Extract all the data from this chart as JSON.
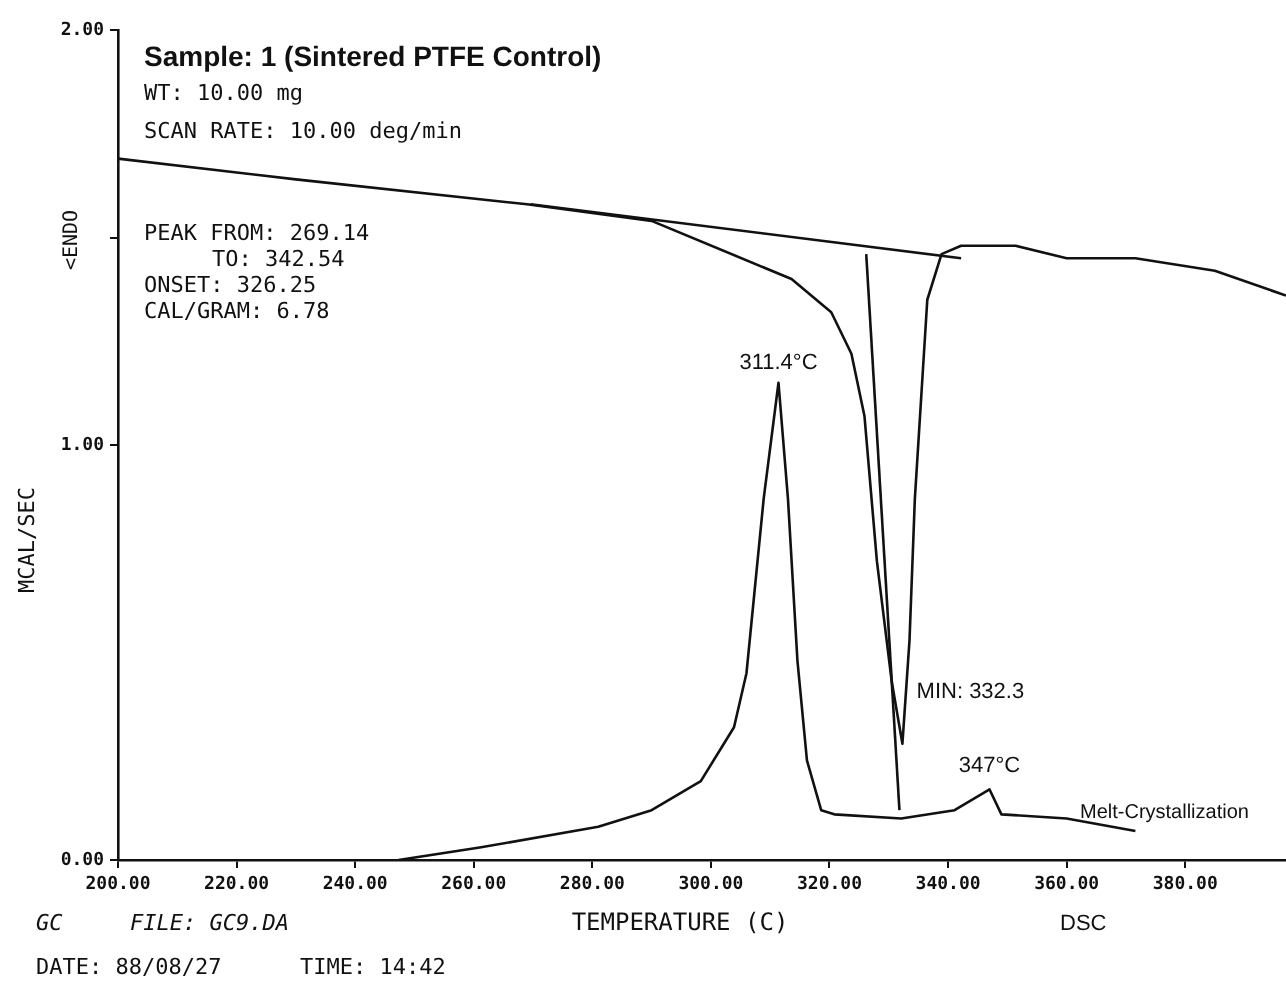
{
  "chart_data": {
    "type": "line",
    "title": "Sample: 1 (Sintered PTFE Control)",
    "xlabel": "TEMPERATURE (C)",
    "ylabel": "MCAL/SEC",
    "xlim": [
      200,
      397
    ],
    "ylim": [
      0,
      2
    ],
    "xticks": [
      {
        "value": 200,
        "label": "200.00"
      },
      {
        "value": 220,
        "label": "220.00"
      },
      {
        "value": 240,
        "label": "240.00"
      },
      {
        "value": 260,
        "label": "260.00"
      },
      {
        "value": 280,
        "label": "280.00"
      },
      {
        "value": 300,
        "label": "300.00"
      },
      {
        "value": 320,
        "label": "320.00"
      },
      {
        "value": 340,
        "label": "340.00"
      },
      {
        "value": 360,
        "label": "360.00"
      },
      {
        "value": 380,
        "label": "380.00"
      }
    ],
    "yticks": [
      {
        "value": 0,
        "label": "0.00"
      },
      {
        "value": 1,
        "label": "1.00"
      },
      {
        "value": 1.5,
        "label": null
      },
      {
        "value": 2,
        "label": "2.00"
      }
    ],
    "grid": false,
    "legend": false,
    "marker": "none",
    "line_style": "solid",
    "series": [
      {
        "color": "#111111",
        "x": [
          200,
          230,
          269,
          290,
          313.6,
          320.3,
          323.7,
          325.9,
          328,
          330.5,
          332.3,
          333.5,
          334.4,
          336.5,
          338.9,
          342.2,
          351.4,
          360,
          371.6,
          385,
          397
        ],
        "values": [
          1.69,
          1.64,
          1.58,
          1.54,
          1.4,
          1.32,
          1.22,
          1.07,
          0.72,
          0.43,
          0.28,
          0.53,
          0.87,
          1.35,
          1.46,
          1.48,
          1.48,
          1.45,
          1.45,
          1.42,
          1.36
        ]
      },
      {
        "color": "#111111",
        "x": [
          247.3,
          261,
          281,
          290,
          298.3,
          303.9,
          306,
          308.9,
          311.4,
          313,
          314.6,
          316.2,
          318.6,
          320.8,
          332.1,
          341.1,
          347,
          349,
          360,
          371.6
        ],
        "values": [
          0,
          0.03,
          0.08,
          0.12,
          0.19,
          0.32,
          0.45,
          0.87,
          1.15,
          0.87,
          0.48,
          0.24,
          0.12,
          0.11,
          0.1,
          0.12,
          0.17,
          0.11,
          0.1,
          0.07
        ]
      },
      {
        "color": "#111111",
        "x": [
          269.6,
          342.2
        ],
        "values": [
          1.58,
          1.45
        ]
      },
      {
        "color": "#111111",
        "x": [
          326.2,
          331.8
        ],
        "values": [
          1.46,
          0.12
        ]
      }
    ],
    "annotations": [
      "WT: 10.00 mg",
      "SCAN RATE: 10.00 deg/min",
      "PEAK FROM: 269.14",
      "TO: 342.54",
      "ONSET: 326.25",
      "CAL/GRAM: 6.78",
      "<ENDO",
      {
        "text": "311.4°C",
        "x": 311.4,
        "y": 1.15
      },
      {
        "text": "MIN: 332.3",
        "x": 332.3,
        "y": 0.28
      },
      {
        "text": "347°C",
        "x": 347,
        "y": 0.17
      },
      "Melt-Crystallization",
      "GC",
      "FILE: GC9.DA",
      "DSC",
      "DATE: 88/08/27",
      "TIME: 14:42"
    ]
  }
}
